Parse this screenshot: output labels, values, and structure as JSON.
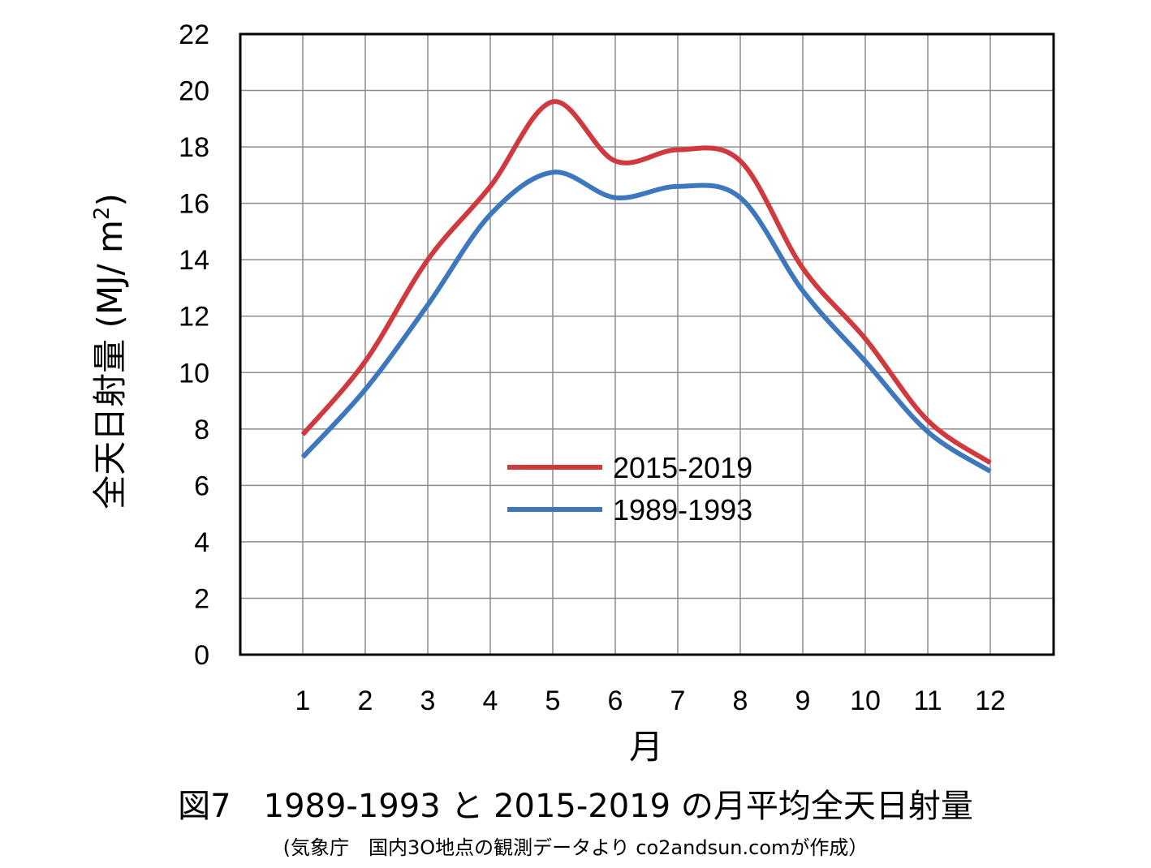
{
  "chart_data": {
    "type": "line",
    "categories": [
      "1",
      "2",
      "3",
      "4",
      "5",
      "6",
      "7",
      "8",
      "9",
      "10",
      "11",
      "12"
    ],
    "series": [
      {
        "name": "2015-2019",
        "color": "#d03a3e",
        "values": [
          7.8,
          10.4,
          14.0,
          16.6,
          19.6,
          17.5,
          17.9,
          17.5,
          13.7,
          11.2,
          8.3,
          6.8
        ]
      },
      {
        "name": "1989-1993",
        "color": "#3d78bf",
        "values": [
          7.0,
          9.4,
          12.4,
          15.6,
          17.1,
          16.2,
          16.6,
          16.2,
          12.9,
          10.4,
          7.9,
          6.5
        ]
      }
    ],
    "ylim": [
      0,
      22
    ],
    "yticks": [
      "0",
      "2",
      "4",
      "6",
      "8",
      "10",
      "12",
      "14",
      "16",
      "18",
      "20",
      "22"
    ],
    "xlabel": "月",
    "ylabel": "全天日射量 (MJ/ m",
    "ylabel_sup": "2",
    "ylabel_close": ")",
    "grid": true,
    "legend_position": "center"
  },
  "caption": "図7　1989-1993 と 2015-2019 の月平均全天日射量",
  "source": "(気象庁　国内3O地点の観測データより co2andsun.comが作成）"
}
